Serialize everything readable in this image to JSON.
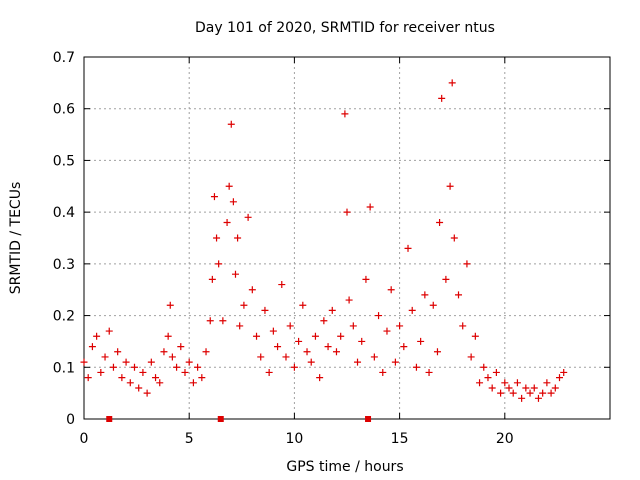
{
  "chart_data": {
    "type": "scatter",
    "title": "Day 101 of 2020, SRMTID for receiver ntus",
    "xlabel": "GPS time / hours",
    "ylabel": "SRMTID / TECUs",
    "xlim": [
      0,
      25
    ],
    "ylim": [
      0,
      0.7
    ],
    "xticks": [
      0,
      5,
      10,
      15,
      20
    ],
    "yticks": [
      0,
      0.1,
      0.2,
      0.3,
      0.4,
      0.5,
      0.6,
      0.7
    ],
    "xtick_labels": [
      "0",
      "5",
      "10",
      "15",
      "20"
    ],
    "ytick_labels": [
      "0",
      "0.1",
      "0.2",
      "0.3",
      "0.4",
      "0.5",
      "0.6",
      "0.7"
    ],
    "grid": true,
    "marker": "+",
    "color": "#dd0000",
    "series": [
      {
        "name": "SRMTID",
        "x": [
          0.0,
          0.2,
          0.4,
          0.6,
          0.8,
          1.0,
          1.2,
          1.4,
          1.6,
          1.8,
          2.0,
          2.2,
          2.4,
          2.6,
          2.8,
          3.0,
          3.2,
          3.4,
          3.6,
          3.8,
          4.0,
          4.1,
          4.2,
          4.4,
          4.6,
          4.8,
          5.0,
          5.2,
          5.4,
          5.6,
          5.8,
          6.0,
          6.1,
          6.2,
          6.3,
          6.4,
          6.6,
          6.8,
          6.9,
          7.0,
          7.1,
          7.2,
          7.3,
          7.4,
          7.6,
          7.8,
          8.0,
          8.2,
          8.4,
          8.6,
          8.8,
          9.0,
          9.2,
          9.4,
          9.6,
          9.8,
          10.0,
          10.2,
          10.4,
          10.6,
          10.8,
          11.0,
          11.2,
          11.4,
          11.6,
          11.8,
          12.0,
          12.2,
          12.4,
          12.5,
          12.6,
          12.8,
          13.0,
          13.2,
          13.4,
          13.6,
          13.8,
          14.0,
          14.2,
          14.4,
          14.6,
          14.8,
          15.0,
          15.2,
          15.4,
          15.6,
          15.8,
          16.0,
          16.2,
          16.4,
          16.6,
          16.8,
          16.9,
          17.0,
          17.2,
          17.4,
          17.5,
          17.6,
          17.8,
          18.0,
          18.2,
          18.4,
          18.6,
          18.8,
          19.0,
          19.2,
          19.4,
          19.6,
          19.8,
          20.0,
          20.2,
          20.4,
          20.6,
          20.8,
          21.0,
          21.2,
          21.4,
          21.6,
          21.8,
          22.0,
          22.2,
          22.4,
          22.6,
          22.8
        ],
        "y": [
          0.11,
          0.08,
          0.14,
          0.16,
          0.09,
          0.12,
          0.17,
          0.1,
          0.13,
          0.08,
          0.11,
          0.07,
          0.1,
          0.06,
          0.09,
          0.05,
          0.11,
          0.08,
          0.07,
          0.13,
          0.16,
          0.22,
          0.12,
          0.1,
          0.14,
          0.09,
          0.11,
          0.07,
          0.1,
          0.08,
          0.13,
          0.19,
          0.27,
          0.43,
          0.35,
          0.3,
          0.19,
          0.38,
          0.45,
          0.57,
          0.42,
          0.28,
          0.35,
          0.18,
          0.22,
          0.39,
          0.25,
          0.16,
          0.12,
          0.21,
          0.09,
          0.17,
          0.14,
          0.26,
          0.12,
          0.18,
          0.1,
          0.15,
          0.22,
          0.13,
          0.11,
          0.16,
          0.08,
          0.19,
          0.14,
          0.21,
          0.13,
          0.16,
          0.59,
          0.4,
          0.23,
          0.18,
          0.11,
          0.15,
          0.27,
          0.41,
          0.12,
          0.2,
          0.09,
          0.17,
          0.25,
          0.11,
          0.18,
          0.14,
          0.33,
          0.21,
          0.1,
          0.15,
          0.24,
          0.09,
          0.22,
          0.13,
          0.38,
          0.62,
          0.27,
          0.45,
          0.65,
          0.35,
          0.24,
          0.18,
          0.3,
          0.12,
          0.16,
          0.07,
          0.1,
          0.08,
          0.06,
          0.09,
          0.05,
          0.07,
          0.06,
          0.05,
          0.07,
          0.04,
          0.06,
          0.05,
          0.06,
          0.04,
          0.05,
          0.07,
          0.05,
          0.06,
          0.08,
          0.09
        ]
      }
    ],
    "axis_markers_x": [
      1.2,
      6.5,
      13.5
    ]
  }
}
